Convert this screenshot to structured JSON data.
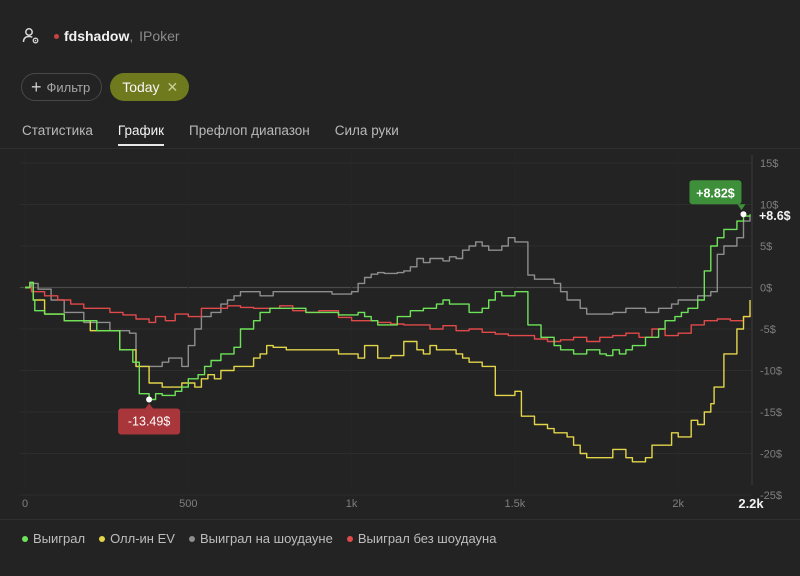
{
  "header": {
    "username": "fdshadow",
    "room": "IPoker",
    "status_color": "#c9423f"
  },
  "filters": {
    "filter_label": "Фильтр",
    "active_filter_label": "Today"
  },
  "tabs": [
    {
      "label": "Статистика",
      "active": false
    },
    {
      "label": "График",
      "active": true
    },
    {
      "label": "Префлоп диапазон",
      "active": false
    },
    {
      "label": "Сила руки",
      "active": false
    }
  ],
  "legend": [
    {
      "label": "Выиграл",
      "color": "#6ee35a"
    },
    {
      "label": "Олл-ин EV",
      "color": "#e3d54a"
    },
    {
      "label": "Выиграл на шоудауне",
      "color": "#8e8e8e"
    },
    {
      "label": "Выиграл без шоудауна",
      "color": "#e04a4a"
    }
  ],
  "chart_data": {
    "type": "line",
    "x_ticks": [
      0,
      500,
      1000,
      1500,
      2000
    ],
    "x_tick_labels": [
      "0",
      "500",
      "1k",
      "1.5k",
      "2k"
    ],
    "x_end_label": "2.2k",
    "xlim": [
      0,
      2220
    ],
    "y_ticks": [
      15,
      10,
      5,
      0,
      -5,
      -10,
      -15,
      -20,
      -25
    ],
    "y_tick_labels": [
      "15$",
      "10$",
      "5$",
      "0$",
      "-5$",
      "-10$",
      "-15$",
      "-20$",
      "-25$"
    ],
    "ylim": [
      -25,
      15
    ],
    "grid": true,
    "series": [
      {
        "name": "Выиграл",
        "color": "#6ee35a",
        "x": [
          0,
          15,
          25,
          30,
          60,
          120,
          220,
          290,
          330,
          350,
          380,
          400,
          420,
          460,
          480,
          500,
          530,
          550,
          570,
          600,
          640,
          660,
          700,
          720,
          750,
          780,
          820,
          860,
          900,
          960,
          1000,
          1020,
          1040,
          1060,
          1080,
          1120,
          1140,
          1180,
          1220,
          1240,
          1260,
          1280,
          1300,
          1340,
          1360,
          1380,
          1400,
          1420,
          1440,
          1460,
          1480,
          1500,
          1540,
          1580,
          1600,
          1620,
          1640,
          1680,
          1700,
          1720,
          1740,
          1760,
          1780,
          1800,
          1820,
          1840,
          1860,
          1880,
          1900,
          1940,
          1960,
          1990,
          2010,
          2030,
          2060,
          2080,
          2100,
          2120,
          2140,
          2180,
          2200,
          2220
        ],
        "y": [
          0,
          0.6,
          -1.5,
          -2.8,
          -3.2,
          -4,
          -5.2,
          -7.5,
          -9,
          -12.8,
          -13.49,
          -12.8,
          -13,
          -12.5,
          -12,
          -11,
          -10.5,
          -9.5,
          -8.8,
          -8,
          -7.2,
          -5,
          -4,
          -3,
          -2.5,
          -2.5,
          -2.5,
          -3,
          -3,
          -3.3,
          -3.3,
          -3,
          -3.5,
          -4,
          -4.5,
          -4.5,
          -3.5,
          -2.8,
          -2.5,
          -2.5,
          -2,
          -1.5,
          -2,
          -2,
          -3,
          -3,
          -2.5,
          -1.5,
          -0.5,
          -1,
          -1,
          -0.5,
          -4.5,
          -6,
          -6,
          -7,
          -7.5,
          -8,
          -8,
          -7.5,
          -7.5,
          -8,
          -8.2,
          -7.5,
          -8,
          -7.5,
          -7,
          -7,
          -6,
          -5,
          -4,
          -3.5,
          -3,
          -2.5,
          -1.5,
          2,
          5,
          6,
          7,
          8,
          8.6,
          8.82
        ]
      },
      {
        "name": "Олл-ин EV",
        "color": "#e3d54a",
        "x": [
          0,
          15,
          25,
          60,
          120,
          200,
          290,
          340,
          380,
          420,
          460,
          480,
          500,
          520,
          540,
          560,
          580,
          600,
          640,
          680,
          700,
          720,
          740,
          760,
          800,
          860,
          900,
          960,
          1000,
          1020,
          1040,
          1080,
          1120,
          1160,
          1200,
          1220,
          1240,
          1260,
          1300,
          1320,
          1340,
          1360,
          1400,
          1440,
          1500,
          1520,
          1560,
          1600,
          1620,
          1660,
          1680,
          1700,
          1720,
          1760,
          1800,
          1840,
          1860,
          1900,
          1920,
          1980,
          2000,
          2040,
          2060,
          2080,
          2100,
          2110,
          2140,
          2180,
          2200,
          2220
        ],
        "y": [
          0,
          0.6,
          -1.5,
          -3.2,
          -4,
          -5.2,
          -7.5,
          -9.5,
          -11.5,
          -12,
          -12,
          -11.5,
          -11.5,
          -12,
          -11,
          -10.5,
          -11,
          -10,
          -9.5,
          -9.5,
          -8.5,
          -8,
          -7,
          -7.2,
          -7.5,
          -7.5,
          -7.5,
          -8,
          -8,
          -8.5,
          -7,
          -8.5,
          -8.2,
          -6.5,
          -7.5,
          -8,
          -7,
          -7.5,
          -7.5,
          -8,
          -8.5,
          -9,
          -9.5,
          -13,
          -12.5,
          -15.5,
          -16.5,
          -17,
          -17.5,
          -18,
          -19,
          -20,
          -20.5,
          -20.5,
          -19.5,
          -20.5,
          -21,
          -20.5,
          -19,
          -17.5,
          -18,
          -16,
          -16.5,
          -15,
          -14,
          -12,
          -8,
          -5,
          -3.5,
          -1.5
        ]
      },
      {
        "name": "Выиграл на шоудауне",
        "color": "#8e8e8e",
        "x": [
          0,
          20,
          40,
          80,
          120,
          180,
          260,
          320,
          340,
          380,
          420,
          440,
          480,
          500,
          520,
          540,
          570,
          600,
          620,
          640,
          660,
          700,
          720,
          760,
          800,
          860,
          900,
          940,
          1000,
          1020,
          1040,
          1060,
          1080,
          1100,
          1140,
          1160,
          1180,
          1200,
          1220,
          1240,
          1280,
          1300,
          1320,
          1340,
          1360,
          1380,
          1400,
          1420,
          1440,
          1460,
          1480,
          1500,
          1540,
          1560,
          1580,
          1620,
          1640,
          1660,
          1700,
          1720,
          1760,
          1800,
          1840,
          1880,
          1900,
          1940,
          1960,
          1980,
          2000,
          2040,
          2060,
          2080,
          2100,
          2120,
          2140,
          2180,
          2200,
          2220
        ],
        "y": [
          0,
          0.5,
          -0.2,
          -1.5,
          -3,
          -4.2,
          -5.2,
          -5.5,
          -9.5,
          -9.5,
          -9,
          -8.5,
          -9.5,
          -7,
          -5,
          -3.5,
          -3,
          -2,
          -1.5,
          -1,
          -0.5,
          -0.5,
          -1,
          -0.5,
          -0.5,
          -0.5,
          -0.5,
          -0.8,
          -0.5,
          0.5,
          1.2,
          1.6,
          1.8,
          1.7,
          1.8,
          2,
          2.5,
          3.5,
          3,
          3.5,
          3.2,
          3.7,
          3.5,
          4.5,
          5,
          5.5,
          5,
          4.5,
          4.5,
          5,
          6,
          5.5,
          1.5,
          1,
          1,
          0.5,
          -0.5,
          -1.5,
          -2.5,
          -3.2,
          -3.2,
          -3,
          -2.5,
          -2.5,
          -3,
          -2.5,
          -2.5,
          -2,
          -1.5,
          -1.5,
          -1,
          -1,
          -0.5,
          4,
          5,
          6,
          8,
          8.6
        ]
      },
      {
        "name": "Выиграл без шоудауна",
        "color": "#e04a4a",
        "x": [
          0,
          20,
          60,
          100,
          140,
          180,
          220,
          260,
          300,
          340,
          380,
          400,
          430,
          460,
          500,
          540,
          580,
          620,
          660,
          700,
          740,
          780,
          820,
          860,
          900,
          960,
          1000,
          1040,
          1080,
          1120,
          1160,
          1200,
          1240,
          1280,
          1320,
          1360,
          1400,
          1440,
          1480,
          1520,
          1560,
          1600,
          1640,
          1680,
          1720,
          1760,
          1800,
          1840,
          1880,
          1920,
          1960,
          2000,
          2040,
          2080,
          2120,
          2160,
          2200,
          2220
        ],
        "y": [
          0,
          -0.5,
          -1,
          -1.5,
          -2,
          -2.5,
          -2.5,
          -3,
          -3.3,
          -3.8,
          -4.2,
          -3.5,
          -4,
          -3.2,
          -3.5,
          -2.5,
          -2.5,
          -2.2,
          -2.4,
          -2.5,
          -2.5,
          -2.2,
          -2.8,
          -3,
          -2.8,
          -3.6,
          -4,
          -4,
          -4.2,
          -4.4,
          -4.5,
          -4.5,
          -5,
          -4.6,
          -5.2,
          -5,
          -5.4,
          -5.6,
          -5.8,
          -5.8,
          -6.2,
          -6.5,
          -6.3,
          -6,
          -6.5,
          -6,
          -5.8,
          -5.5,
          -6,
          -5,
          -5.8,
          -5.5,
          -4.5,
          -4,
          -3.8,
          -4,
          -3.5,
          -3
        ]
      }
    ],
    "annotations": [
      {
        "label": "+8.82$",
        "x": 2200,
        "y": 8.82,
        "color": "#3e8f3a"
      },
      {
        "label": "-13.49$",
        "x": 380,
        "y": -13.49,
        "color": "#a8363a"
      },
      {
        "label": "+8.6$",
        "x": 2220,
        "y": 8.6
      }
    ]
  }
}
